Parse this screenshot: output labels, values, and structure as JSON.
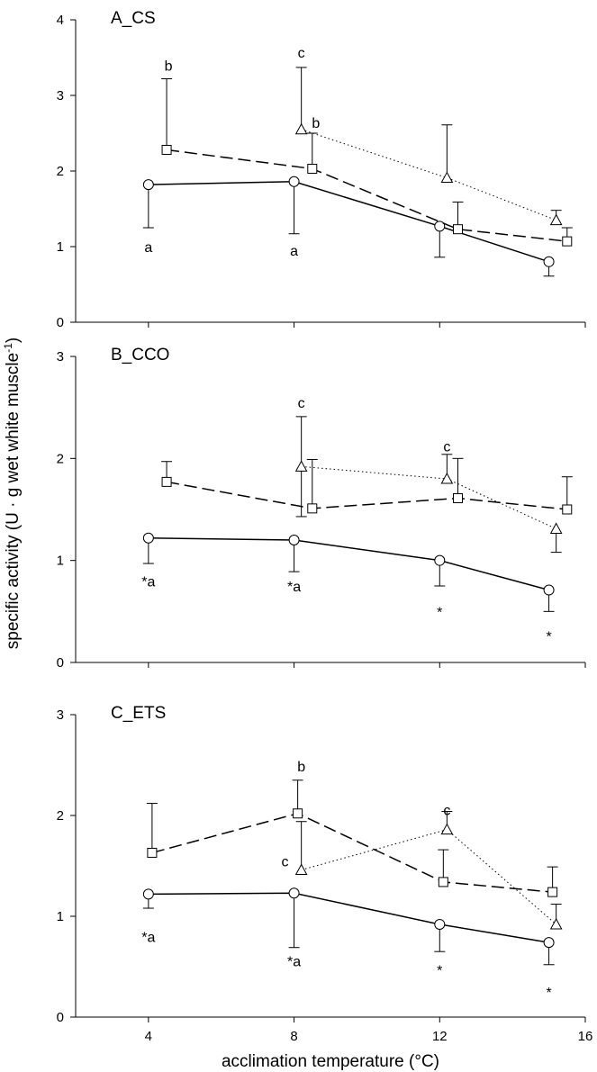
{
  "figure": {
    "ylabel": "specific activity (U · g wet white muscle",
    "ylabel_sup": "-1",
    "ylabel_close": ")",
    "xlabel": "acclimation temperature (°C)"
  },
  "chart_data": [
    {
      "type": "line",
      "title": "A_CS",
      "xlim": [
        2,
        16
      ],
      "ylim": [
        0,
        4
      ],
      "yticks": [
        0,
        1,
        2,
        3,
        4
      ],
      "xticks": [
        4,
        8,
        12,
        16
      ],
      "show_xtick_labels": false,
      "series": [
        {
          "marker": "circle",
          "line": "solid",
          "x": [
            4,
            8,
            12,
            15
          ],
          "y": [
            1.82,
            1.86,
            1.27,
            0.8
          ],
          "err_low": [
            0.57,
            0.69,
            0.41,
            0.19
          ],
          "err_high": [
            0,
            0,
            0,
            0
          ]
        },
        {
          "marker": "square",
          "line": "dashed",
          "x": [
            4.5,
            8.5,
            12.5,
            15.5
          ],
          "y": [
            2.28,
            2.03,
            1.23,
            1.07
          ],
          "err_low": [
            0,
            0,
            0,
            0
          ],
          "err_high": [
            0.94,
            0.47,
            0.36,
            0.18
          ]
        },
        {
          "marker": "triangle",
          "line": "dotted",
          "x": [
            8.2,
            12.2,
            15.2
          ],
          "y": [
            2.55,
            1.91,
            1.35
          ],
          "err_low": [
            0,
            0,
            0
          ],
          "err_high": [
            0.82,
            0.7,
            0.13
          ]
        }
      ],
      "annotations": [
        {
          "text": "b",
          "x": 4.55,
          "y": 3.4
        },
        {
          "text": "c",
          "x": 8.2,
          "y": 3.57
        },
        {
          "text": "b",
          "x": 8.6,
          "y": 2.64
        },
        {
          "text": "a",
          "x": 4.0,
          "y": 1.0
        },
        {
          "text": "a",
          "x": 8.0,
          "y": 0.95
        }
      ]
    },
    {
      "type": "line",
      "title": "B_CCO",
      "xlim": [
        2,
        16
      ],
      "ylim": [
        0,
        3
      ],
      "yticks": [
        0,
        1,
        2,
        3
      ],
      "xticks": [
        4,
        8,
        12,
        16
      ],
      "show_xtick_labels": false,
      "series": [
        {
          "marker": "circle",
          "line": "solid",
          "x": [
            4,
            8,
            12,
            15
          ],
          "y": [
            1.22,
            1.2,
            1.0,
            0.71
          ],
          "err_low": [
            0.25,
            0.31,
            0.25,
            0.21
          ],
          "err_high": [
            0,
            0,
            0,
            0
          ]
        },
        {
          "marker": "square",
          "line": "dashed",
          "x": [
            4.5,
            8.5,
            12.5,
            15.5
          ],
          "y": [
            1.77,
            1.51,
            1.61,
            1.5
          ],
          "err_low": [
            0,
            0,
            0,
            0
          ],
          "err_high": [
            0.2,
            0.48,
            0.39,
            0.32
          ]
        },
        {
          "marker": "triangle",
          "line": "dotted",
          "x": [
            8.2,
            12.2,
            15.2
          ],
          "y": [
            1.92,
            1.8,
            1.31
          ],
          "err_low": [
            0.49,
            0,
            0.23
          ],
          "err_high": [
            0.49,
            0.24,
            0
          ]
        }
      ],
      "annotations": [
        {
          "text": "c",
          "x": 8.2,
          "y": 2.55
        },
        {
          "text": "c",
          "x": 12.2,
          "y": 2.12
        },
        {
          "text": "*a",
          "x": 4.0,
          "y": 0.8
        },
        {
          "text": "*a",
          "x": 8.0,
          "y": 0.75
        },
        {
          "text": "*",
          "x": 12.0,
          "y": 0.5
        },
        {
          "text": "*",
          "x": 15.0,
          "y": 0.26
        }
      ]
    },
    {
      "type": "line",
      "title": "C_ETS",
      "xlim": [
        2,
        16
      ],
      "ylim": [
        0,
        3
      ],
      "yticks": [
        0,
        1,
        2,
        3
      ],
      "xticks": [
        4,
        8,
        12,
        16
      ],
      "show_xtick_labels": true,
      "series": [
        {
          "marker": "circle",
          "line": "solid",
          "x": [
            4,
            8,
            12,
            15
          ],
          "y": [
            1.22,
            1.23,
            0.92,
            0.74
          ],
          "err_low": [
            0.14,
            0.54,
            0.27,
            0.22
          ],
          "err_high": [
            0,
            0,
            0,
            0
          ]
        },
        {
          "marker": "square",
          "line": "dashed",
          "x": [
            4.1,
            8.1,
            12.1,
            15.1
          ],
          "y": [
            1.63,
            2.02,
            1.34,
            1.24
          ],
          "err_low": [
            0,
            0,
            0,
            0
          ],
          "err_high": [
            0.49,
            0.33,
            0.32,
            0.25
          ]
        },
        {
          "marker": "triangle",
          "line": "dotted",
          "x": [
            8.2,
            12.2,
            15.2
          ],
          "y": [
            1.46,
            1.86,
            0.92
          ],
          "err_low": [
            0,
            0,
            0
          ],
          "err_high": [
            0.48,
            0.18,
            0.2
          ]
        }
      ],
      "annotations": [
        {
          "text": "b",
          "x": 8.2,
          "y": 2.49
        },
        {
          "text": "c",
          "x": 12.2,
          "y": 2.06
        },
        {
          "text": "c",
          "x": 7.75,
          "y": 1.55
        },
        {
          "text": "*a",
          "x": 4.0,
          "y": 0.8
        },
        {
          "text": "*a",
          "x": 8.0,
          "y": 0.56
        },
        {
          "text": "*",
          "x": 12.0,
          "y": 0.47
        },
        {
          "text": "*",
          "x": 15.0,
          "y": 0.25
        }
      ]
    }
  ]
}
